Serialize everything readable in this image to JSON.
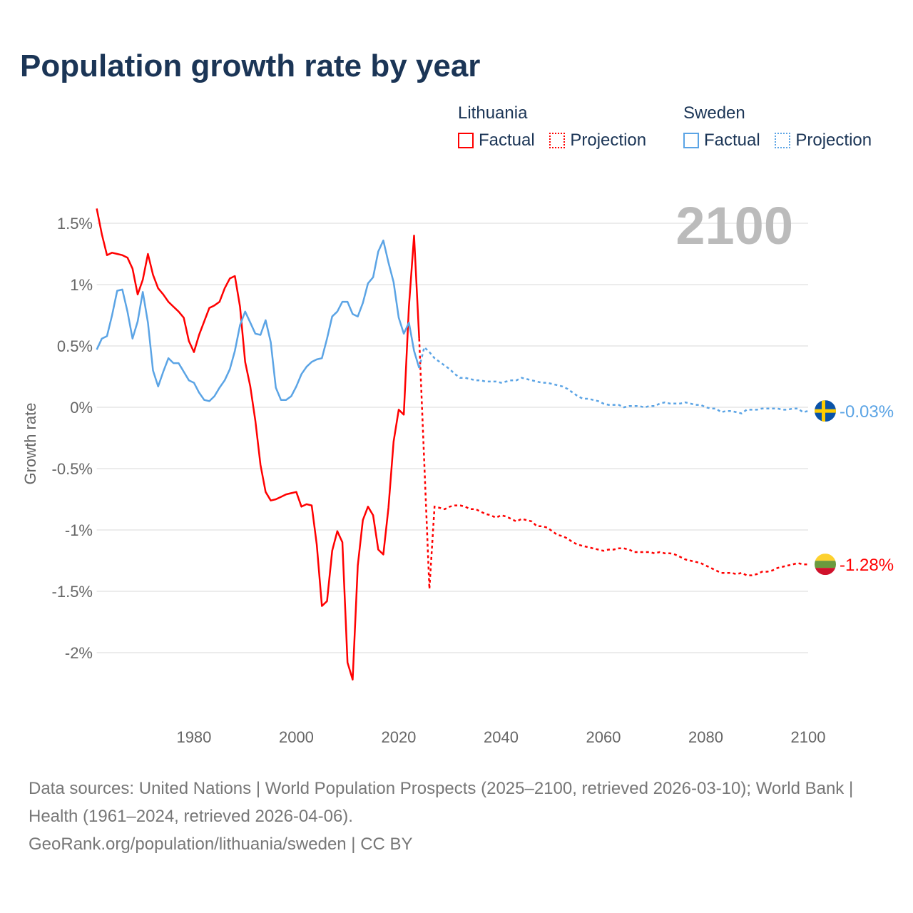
{
  "title": "Population growth rate by year",
  "legend": {
    "groups": [
      {
        "name": "Lithuania",
        "factual": "Factual",
        "projection": "Projection",
        "color": "#ff0000"
      },
      {
        "name": "Sweden",
        "factual": "Factual",
        "projection": "Projection",
        "color": "#5ba4e5"
      }
    ]
  },
  "footer": {
    "sources": "Data sources: United Nations | World Population Prospects (2025–2100, retrieved 2026-03-10); World Bank | Health (1961–2024, retrieved 2026-04-06).",
    "credit": "GeoRank.org/population/lithuania/sweden | CC BY"
  },
  "chart_data": {
    "type": "line",
    "title": "Population growth rate by year",
    "xlabel": "",
    "ylabel": "Growth rate",
    "current_year_label": "2100",
    "xlim": [
      1961,
      2100
    ],
    "ylim": [
      -2.5,
      1.65
    ],
    "x_ticks": [
      1980,
      2000,
      2020,
      2040,
      2060,
      2080,
      2100
    ],
    "y_ticks": [
      {
        "value": 1.5,
        "label": "1.5%"
      },
      {
        "value": 1,
        "label": "1%"
      },
      {
        "value": 0.5,
        "label": "0.5%"
      },
      {
        "value": 0,
        "label": "0%"
      },
      {
        "value": -0.5,
        "label": "-0.5%"
      },
      {
        "value": -1,
        "label": "-1%"
      },
      {
        "value": -1.5,
        "label": "-1.5%"
      },
      {
        "value": -2,
        "label": "-2%"
      }
    ],
    "grid": true,
    "legend_position": "top-right",
    "series": [
      {
        "name": "Lithuania",
        "color": "#ff0000",
        "end_label": "-1.28%",
        "factual": {
          "start_year": 1961,
          "values": [
            1.62,
            1.41,
            1.24,
            1.26,
            1.25,
            1.24,
            1.22,
            1.13,
            0.92,
            1.04,
            1.25,
            1.08,
            0.97,
            0.92,
            0.86,
            0.82,
            0.78,
            0.73,
            0.54,
            0.45,
            0.59,
            0.7,
            0.81,
            0.83,
            0.86,
            0.97,
            1.05,
            1.07,
            0.82,
            0.37,
            0.17,
            -0.11,
            -0.47,
            -0.69,
            -0.76,
            -0.75,
            -0.73,
            -0.71,
            -0.7,
            -0.69,
            -0.81,
            -0.79,
            -0.8,
            -1.12,
            -1.62,
            -1.58,
            -1.17,
            -1.01,
            -1.1,
            -2.08,
            -2.22,
            -1.29,
            -0.92,
            -0.81,
            -0.88,
            -1.16,
            -1.2,
            -0.82,
            -0.28,
            -0.02,
            -0.06,
            0.82,
            1.4,
            0.56
          ]
        },
        "projection": {
          "start_year": 2025,
          "values": [
            -0.45,
            -1.48,
            -0.81,
            -0.82,
            -0.83,
            -0.81,
            -0.8,
            -0.8,
            -0.81,
            -0.83,
            -0.83,
            -0.85,
            -0.87,
            -0.88,
            -0.9,
            -0.88,
            -0.89,
            -0.91,
            -0.93,
            -0.91,
            -0.92,
            -0.93,
            -0.97,
            -0.97,
            -0.98,
            -1.01,
            -1.04,
            -1.05,
            -1.07,
            -1.1,
            -1.12,
            -1.13,
            -1.14,
            -1.15,
            -1.16,
            -1.17,
            -1.16,
            -1.16,
            -1.15,
            -1.15,
            -1.16,
            -1.18,
            -1.18,
            -1.18,
            -1.18,
            -1.19,
            -1.18,
            -1.19,
            -1.19,
            -1.2,
            -1.22,
            -1.24,
            -1.25,
            -1.26,
            -1.27,
            -1.29,
            -1.31,
            -1.33,
            -1.35,
            -1.35,
            -1.35,
            -1.36,
            -1.35,
            -1.37,
            -1.37,
            -1.36,
            -1.34,
            -1.34,
            -1.33,
            -1.31,
            -1.3,
            -1.29,
            -1.28,
            -1.27,
            -1.28,
            -1.28
          ]
        }
      },
      {
        "name": "Sweden",
        "color": "#5ba4e5",
        "end_label": "-0.03%",
        "factual": {
          "start_year": 1961,
          "values": [
            0.47,
            0.56,
            0.58,
            0.75,
            0.95,
            0.96,
            0.78,
            0.56,
            0.7,
            0.94,
            0.69,
            0.3,
            0.17,
            0.29,
            0.4,
            0.36,
            0.36,
            0.29,
            0.22,
            0.2,
            0.12,
            0.06,
            0.05,
            0.09,
            0.16,
            0.22,
            0.31,
            0.46,
            0.67,
            0.78,
            0.69,
            0.6,
            0.59,
            0.71,
            0.53,
            0.16,
            0.06,
            0.06,
            0.09,
            0.17,
            0.27,
            0.33,
            0.37,
            0.39,
            0.4,
            0.56,
            0.74,
            0.78,
            0.86,
            0.86,
            0.76,
            0.74,
            0.85,
            1.01,
            1.06,
            1.27,
            1.36,
            1.18,
            1.02,
            0.73,
            0.6,
            0.69,
            0.46,
            0.32
          ]
        },
        "projection": {
          "start_year": 2025,
          "values": [
            0.49,
            0.45,
            0.4,
            0.37,
            0.34,
            0.31,
            0.27,
            0.24,
            0.24,
            0.23,
            0.22,
            0.22,
            0.21,
            0.21,
            0.21,
            0.2,
            0.21,
            0.22,
            0.22,
            0.24,
            0.23,
            0.22,
            0.21,
            0.2,
            0.2,
            0.19,
            0.18,
            0.17,
            0.15,
            0.12,
            0.09,
            0.07,
            0.07,
            0.06,
            0.05,
            0.03,
            0.02,
            0.02,
            0.02,
            0.0,
            0.01,
            0.01,
            0.01,
            0.0,
            0.01,
            0.01,
            0.03,
            0.04,
            0.03,
            0.03,
            0.03,
            0.04,
            0.03,
            0.02,
            0.02,
            0.0,
            -0.01,
            -0.01,
            -0.04,
            -0.03,
            -0.03,
            -0.04,
            -0.05,
            -0.02,
            -0.02,
            -0.02,
            -0.01,
            -0.01,
            -0.01,
            -0.01,
            -0.02,
            -0.02,
            -0.01,
            -0.01,
            -0.04,
            -0.03
          ]
        }
      }
    ]
  }
}
